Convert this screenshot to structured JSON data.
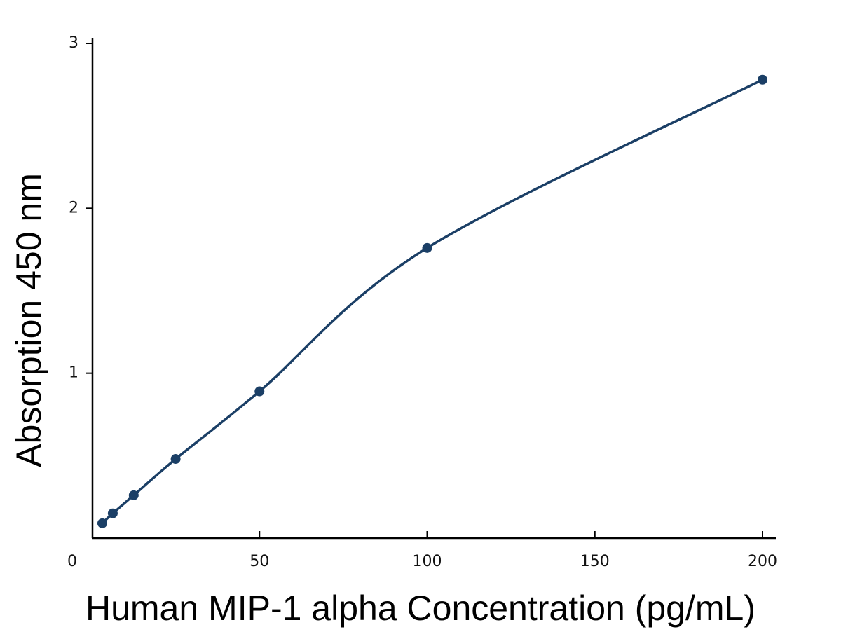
{
  "chart_data": {
    "type": "line",
    "xlabel": "Human MIP-1 alpha Concentration (pg/mL)",
    "ylabel": "Absorption 450 nm",
    "xlim": [
      0,
      200
    ],
    "ylim": [
      0,
      3
    ],
    "x_ticks": [
      "0",
      "50",
      "100",
      "150",
      "200"
    ],
    "y_ticks": [
      "1",
      "2",
      "3"
    ],
    "grid": false,
    "legend": "none",
    "colors": {
      "series": "#1b3f66",
      "axis": "#000000"
    },
    "series": [
      {
        "points": [
          {
            "x": 3.13,
            "y": 0.09
          },
          {
            "x": 6.25,
            "y": 0.15
          },
          {
            "x": 12.5,
            "y": 0.26
          },
          {
            "x": 25,
            "y": 0.48
          },
          {
            "x": 50,
            "y": 0.89
          },
          {
            "x": 100,
            "y": 1.76
          },
          {
            "x": 200,
            "y": 2.78
          }
        ]
      }
    ]
  }
}
